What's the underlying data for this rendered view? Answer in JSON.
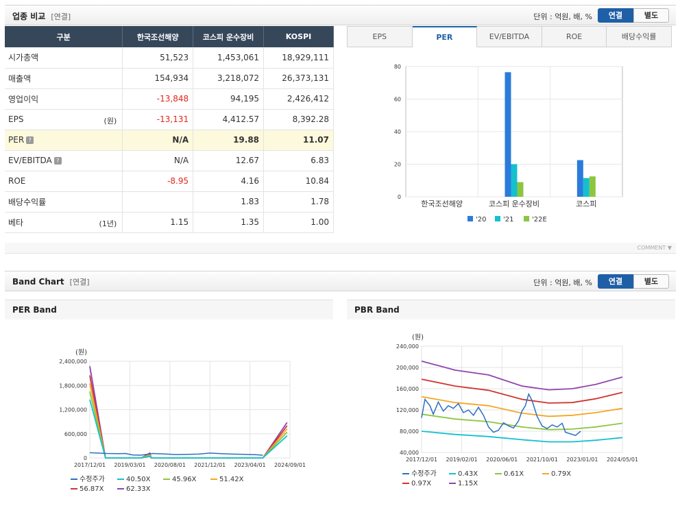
{
  "industry": {
    "title": "업종 비교",
    "sub": "[연결]",
    "unit": "단위 : 억원, 배, %",
    "toggle_on": "연결",
    "toggle_off": "별도",
    "headers": [
      "구분",
      "한국조선해양",
      "코스피 운수장비",
      "KOSPI"
    ],
    "rows": [
      {
        "label": "시가총액",
        "unit": "",
        "v": [
          "51,523",
          "1,453,061",
          "18,929,111"
        ],
        "neg": [
          false,
          false,
          false
        ]
      },
      {
        "label": "매출액",
        "unit": "",
        "v": [
          "154,934",
          "3,218,072",
          "26,373,131"
        ],
        "neg": [
          false,
          false,
          false
        ]
      },
      {
        "label": "영업이익",
        "unit": "",
        "v": [
          "-13,848",
          "94,195",
          "2,426,412"
        ],
        "neg": [
          true,
          false,
          false
        ]
      },
      {
        "label": "EPS",
        "unit": "(원)",
        "v": [
          "-13,131",
          "4,412.57",
          "8,392.28"
        ],
        "neg": [
          true,
          false,
          false
        ]
      },
      {
        "label": "PER",
        "unit": "",
        "v": [
          "N/A",
          "19.88",
          "11.07"
        ],
        "neg": [
          false,
          false,
          false
        ],
        "highlight": true,
        "help": true
      },
      {
        "label": "EV/EBITDA",
        "unit": "",
        "v": [
          "N/A",
          "12.67",
          "6.83"
        ],
        "neg": [
          false,
          false,
          false
        ],
        "help": true
      },
      {
        "label": "ROE",
        "unit": "",
        "v": [
          "-8.95",
          "4.16",
          "10.84"
        ],
        "neg": [
          true,
          false,
          false
        ]
      },
      {
        "label": "배당수익률",
        "unit": "",
        "v": [
          "",
          "1.83",
          "1.78"
        ],
        "neg": [
          false,
          false,
          false
        ]
      },
      {
        "label": "베타",
        "unit": "(1년)",
        "v": [
          "1.15",
          "1.35",
          "1.00"
        ],
        "neg": [
          false,
          false,
          false
        ]
      }
    ],
    "tabs": [
      "EPS",
      "PER",
      "EV/EBITDA",
      "ROE",
      "배당수익률"
    ],
    "active_tab": 1,
    "help_icon": "?"
  },
  "comment_label": "COMMENT",
  "band": {
    "title": "Band Chart",
    "sub": "[연결]",
    "unit": "단위 : 억원, 배, %",
    "toggle_on": "연결",
    "toggle_off": "별도",
    "per_title": "PER Band",
    "pbr_title": "PBR Band"
  },
  "chart_data": [
    {
      "type": "bar",
      "categories": [
        "한국조선해양",
        "코스피  운수장비",
        "코스피"
      ],
      "series": [
        {
          "name": "'20",
          "values": [
            null,
            76.5,
            22.5
          ],
          "color": "#2b7bdc"
        },
        {
          "name": "'21",
          "values": [
            null,
            20,
            11.5
          ],
          "color": "#14c0cf"
        },
        {
          "name": "'22E",
          "values": [
            null,
            9,
            12.5
          ],
          "color": "#8cc63f"
        }
      ],
      "ylim": [
        0,
        80
      ],
      "yticks": [
        0,
        20,
        40,
        60,
        80
      ],
      "legend": "bottom"
    },
    {
      "type": "line",
      "title": "PER Band",
      "ylabel": "(원)",
      "ylim": [
        0,
        2400000
      ],
      "yticks": [
        "0",
        "600,000",
        "1,200,000",
        "1,800,000",
        "2,400,000"
      ],
      "ytick_values": [
        0,
        600000,
        1200000,
        1800000,
        2400000
      ],
      "xticks": [
        "2017/12/01",
        "2019/03/01",
        "2020/08/01",
        "2021/12/01",
        "2023/04/01",
        "2024/09/01"
      ],
      "legend": "bottom",
      "series": [
        {
          "name": "수정주가",
          "color": "#2b6fc4",
          "values": [
            [
              0,
              130000
            ],
            [
              0.3,
              120000
            ],
            [
              0.6,
              110000
            ],
            [
              1,
              105000
            ],
            [
              1.25,
              110000
            ],
            [
              1.5,
              75000
            ],
            [
              1.8,
              70000
            ],
            [
              2.2,
              110000
            ],
            [
              2.6,
              100000
            ],
            [
              3.0,
              85000
            ],
            [
              3.4,
              90000
            ],
            [
              3.8,
              95000
            ],
            [
              4.2,
              120000
            ],
            [
              4.6,
              105000
            ],
            [
              5.0,
              95000
            ],
            [
              5.4,
              90000
            ],
            [
              5.8,
              80000
            ],
            [
              6.05,
              70000
            ]
          ]
        },
        {
          "name": "40.50X",
          "color": "#14c0cf",
          "values": [
            [
              0,
              1450000
            ],
            [
              0.55,
              0
            ],
            [
              1.8,
              0
            ],
            [
              2.1,
              40000
            ],
            [
              2.15,
              0
            ],
            [
              6.05,
              0
            ],
            [
              6.9,
              550000
            ]
          ]
        },
        {
          "name": "45.96X",
          "color": "#8cc63f",
          "values": [
            [
              0,
              1650000
            ],
            [
              0.55,
              0
            ],
            [
              1.8,
              0
            ],
            [
              2.1,
              60000
            ],
            [
              2.15,
              0
            ],
            [
              6.05,
              0
            ],
            [
              6.9,
              640000
            ]
          ]
        },
        {
          "name": "51.42X",
          "color": "#f5a623",
          "values": [
            [
              0,
              1850000
            ],
            [
              0.55,
              0
            ],
            [
              1.8,
              0
            ],
            [
              2.1,
              80000
            ],
            [
              2.15,
              0
            ],
            [
              6.05,
              0
            ],
            [
              6.9,
              720000
            ]
          ]
        },
        {
          "name": "56.87X",
          "color": "#d0332f",
          "values": [
            [
              0,
              2050000
            ],
            [
              0.55,
              0
            ],
            [
              1.8,
              0
            ],
            [
              2.1,
              100000
            ],
            [
              2.15,
              0
            ],
            [
              6.05,
              0
            ],
            [
              6.9,
              800000
            ]
          ]
        },
        {
          "name": "62.33X",
          "color": "#8e44ad",
          "values": [
            [
              0,
              2280000
            ],
            [
              0.55,
              0
            ],
            [
              1.8,
              0
            ],
            [
              2.1,
              120000
            ],
            [
              2.15,
              0
            ],
            [
              6.05,
              0
            ],
            [
              6.9,
              880000
            ]
          ]
        }
      ]
    },
    {
      "type": "line",
      "title": "PBR Band",
      "ylabel": "(원)",
      "ylim": [
        40000,
        240000
      ],
      "yticks": [
        "40,000",
        "80,000",
        "120,000",
        "160,000",
        "200,000",
        "240,000"
      ],
      "ytick_values": [
        40000,
        80000,
        120000,
        160000,
        200000,
        240000
      ],
      "xticks": [
        "2017/12/01",
        "2019/02/01",
        "2020/06/01",
        "2021/10/01",
        "2023/01/01",
        "2024/05/01"
      ],
      "legend": "bottom",
      "series": [
        {
          "name": "수정주가",
          "color": "#2b6fc4",
          "values": [
            [
              0,
              105000
            ],
            [
              0.1,
              140000
            ],
            [
              0.25,
              128000
            ],
            [
              0.35,
              112000
            ],
            [
              0.5,
              135000
            ],
            [
              0.65,
              118000
            ],
            [
              0.8,
              128000
            ],
            [
              0.95,
              123000
            ],
            [
              1.1,
              132000
            ],
            [
              1.25,
              115000
            ],
            [
              1.4,
              120000
            ],
            [
              1.55,
              110000
            ],
            [
              1.7,
              125000
            ],
            [
              1.85,
              110000
            ],
            [
              2.0,
              88000
            ],
            [
              2.15,
              78000
            ],
            [
              2.3,
              82000
            ],
            [
              2.45,
              96000
            ],
            [
              2.6,
              90000
            ],
            [
              2.75,
              86000
            ],
            [
              2.9,
              100000
            ],
            [
              3.0,
              118000
            ],
            [
              3.1,
              128000
            ],
            [
              3.2,
              150000
            ],
            [
              3.3,
              138000
            ],
            [
              3.45,
              108000
            ],
            [
              3.6,
              90000
            ],
            [
              3.75,
              85000
            ],
            [
              3.9,
              92000
            ],
            [
              4.05,
              88000
            ],
            [
              4.2,
              95000
            ],
            [
              4.3,
              78000
            ],
            [
              4.45,
              75000
            ],
            [
              4.6,
              72000
            ],
            [
              4.75,
              80000
            ]
          ]
        },
        {
          "name": "0.43X",
          "color": "#14c0cf",
          "values": [
            [
              0,
              80000
            ],
            [
              1,
              74000
            ],
            [
              2,
              70000
            ],
            [
              3,
              64000
            ],
            [
              3.8,
              60000
            ],
            [
              4.5,
              60000
            ],
            [
              5.2,
              63000
            ],
            [
              6,
              68000
            ]
          ]
        },
        {
          "name": "0.61X",
          "color": "#8cc63f",
          "values": [
            [
              0,
              112000
            ],
            [
              1,
              103000
            ],
            [
              2,
              98000
            ],
            [
              3,
              88000
            ],
            [
              3.8,
              83000
            ],
            [
              4.5,
              84000
            ],
            [
              5.2,
              88000
            ],
            [
              6,
              95000
            ]
          ]
        },
        {
          "name": "0.79X",
          "color": "#f5a623",
          "values": [
            [
              0,
              145000
            ],
            [
              1,
              134000
            ],
            [
              2,
              128000
            ],
            [
              3,
              114000
            ],
            [
              3.8,
              108000
            ],
            [
              4.5,
              110000
            ],
            [
              5.2,
              115000
            ],
            [
              6,
              123000
            ]
          ]
        },
        {
          "name": "0.97X",
          "color": "#d0332f",
          "values": [
            [
              0,
              178000
            ],
            [
              1,
              165000
            ],
            [
              2,
              157000
            ],
            [
              3,
              140000
            ],
            [
              3.8,
              133000
            ],
            [
              4.5,
              134000
            ],
            [
              5.2,
              141000
            ],
            [
              6,
              153000
            ]
          ]
        },
        {
          "name": "1.15X",
          "color": "#8e44ad",
          "values": [
            [
              0,
              212000
            ],
            [
              1,
              195000
            ],
            [
              2,
              186000
            ],
            [
              3,
              165000
            ],
            [
              3.8,
              158000
            ],
            [
              4.5,
              160000
            ],
            [
              5.2,
              168000
            ],
            [
              6,
              182000
            ]
          ]
        }
      ]
    }
  ]
}
